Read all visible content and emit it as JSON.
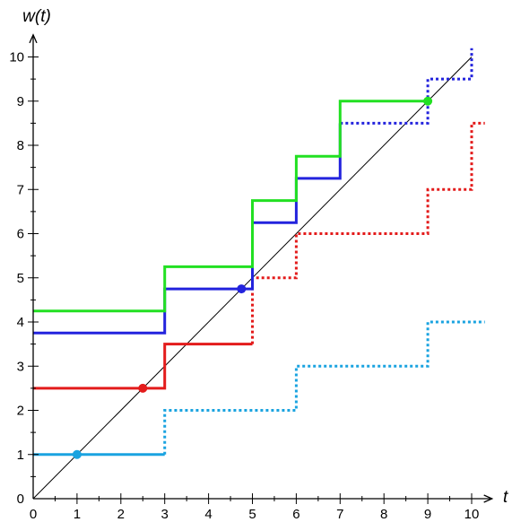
{
  "chart_data": {
    "type": "line",
    "title": "",
    "xlabel": "t",
    "ylabel": "w(t)",
    "xlim": [
      0,
      10.3
    ],
    "ylim": [
      0,
      10.5
    ],
    "xticks": [
      0,
      1,
      2,
      3,
      4,
      5,
      6,
      7,
      8,
      9,
      10
    ],
    "yticks": [
      0,
      1,
      2,
      3,
      4,
      5,
      6,
      7,
      8,
      9,
      10
    ],
    "x_minor_step": 0.5,
    "y_minor_step": 0.5,
    "grid": false,
    "diagonal": {
      "from": [
        0,
        0
      ],
      "to": [
        10,
        10
      ],
      "color": "#000000"
    },
    "series": [
      {
        "color": "#1aa3e0",
        "solid": [
          [
            0,
            1
          ],
          [
            3,
            1
          ]
        ],
        "dotted": [
          [
            3,
            1
          ],
          [
            3,
            2
          ],
          [
            6,
            2
          ],
          [
            6,
            3
          ],
          [
            9,
            3
          ],
          [
            9,
            4
          ],
          [
            10.3,
            4
          ]
        ],
        "marker": [
          1,
          1
        ]
      },
      {
        "color": "#e31b1b",
        "solid": [
          [
            0,
            2.5
          ],
          [
            3,
            2.5
          ],
          [
            3,
            3.5
          ],
          [
            5,
            3.5
          ]
        ],
        "dotted": [
          [
            5,
            3.5
          ],
          [
            5,
            5
          ],
          [
            6,
            5
          ],
          [
            6,
            6
          ],
          [
            9,
            6
          ],
          [
            9,
            7
          ],
          [
            10,
            7
          ],
          [
            10,
            8.5
          ],
          [
            10.3,
            8.5
          ]
        ],
        "marker": [
          2.5,
          2.5
        ]
      },
      {
        "color": "#2323dd",
        "solid": [
          [
            0,
            3.75
          ],
          [
            3,
            3.75
          ],
          [
            3,
            4.75
          ],
          [
            5,
            4.75
          ],
          [
            5,
            6.25
          ],
          [
            6,
            6.25
          ],
          [
            6,
            7.25
          ],
          [
            7,
            7.25
          ],
          [
            7,
            8.5
          ]
        ],
        "dotted": [
          [
            7,
            8.5
          ],
          [
            9,
            8.5
          ],
          [
            9,
            9.5
          ],
          [
            10,
            9.5
          ],
          [
            10,
            10.2
          ]
        ],
        "marker": [
          4.75,
          4.75
        ]
      },
      {
        "color": "#22e022",
        "solid": [
          [
            0,
            4.25
          ],
          [
            3,
            4.25
          ],
          [
            3,
            5.25
          ],
          [
            5,
            5.25
          ],
          [
            5,
            6.75
          ],
          [
            6,
            6.75
          ],
          [
            6,
            7.75
          ],
          [
            7,
            7.75
          ],
          [
            7,
            9
          ],
          [
            9,
            9
          ]
        ],
        "dotted": [],
        "marker": [
          9,
          9
        ]
      }
    ]
  }
}
